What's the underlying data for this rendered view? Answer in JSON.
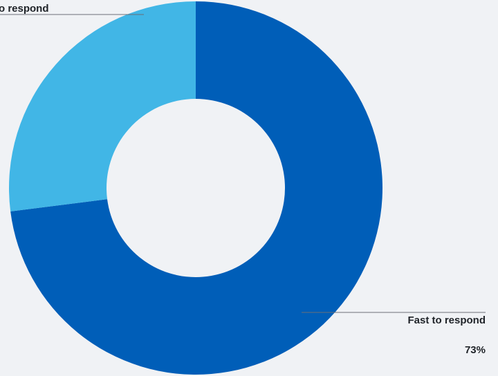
{
  "chart_data": {
    "type": "pie",
    "variant": "donut",
    "title": "",
    "slices": [
      {
        "label": "Fast to respond",
        "value": 73,
        "value_label": "73%",
        "color": "#005eb8"
      },
      {
        "label": "Slow to respond",
        "value": 27,
        "value_label": "",
        "color": "#41b6e6"
      }
    ],
    "visible_text": {
      "fast_label": "Fast to respond",
      "fast_value": "73%",
      "slow_label_visible": "o respond"
    }
  },
  "colors": {
    "background": "#f0f2f5",
    "fast": "#005eb8",
    "slow": "#41b6e6",
    "text": "#1f2328"
  }
}
